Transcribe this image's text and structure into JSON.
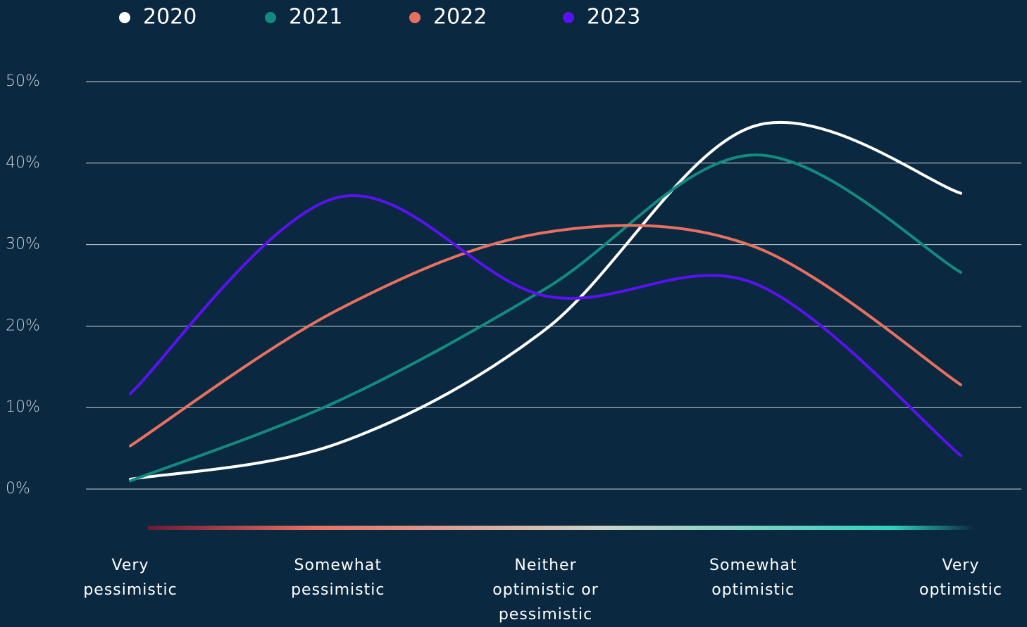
{
  "chart_data": {
    "type": "line",
    "categories": [
      "Very pessimistic",
      "Somewhat pessimistic",
      "Neither optimistic or pessimistic",
      "Somewhat optimistic",
      "Very optimistic"
    ],
    "series": [
      {
        "name": "2020",
        "color": "#ffffff",
        "values": [
          1.2,
          5.6,
          19.6,
          44.5,
          36.3
        ]
      },
      {
        "name": "2021",
        "color": "#138a80",
        "values": [
          1.0,
          10.8,
          24.6,
          41.0,
          26.6
        ]
      },
      {
        "name": "2022",
        "color": "#e8705f",
        "values": [
          5.3,
          22.0,
          31.5,
          29.8,
          12.8
        ]
      },
      {
        "name": "2023",
        "color": "#5a12f0",
        "values": [
          11.7,
          35.8,
          23.7,
          25.3,
          4.1
        ]
      }
    ],
    "ylim": [
      0,
      50
    ],
    "yticks": [
      {
        "value": 0,
        "label": "0%"
      },
      {
        "value": 10,
        "label": "10%"
      },
      {
        "value": 20,
        "label": "20%"
      },
      {
        "value": 30,
        "label": "30%"
      },
      {
        "value": 40,
        "label": "40%"
      },
      {
        "value": 50,
        "label": "50%"
      }
    ],
    "grid": true,
    "legend": "top"
  }
}
